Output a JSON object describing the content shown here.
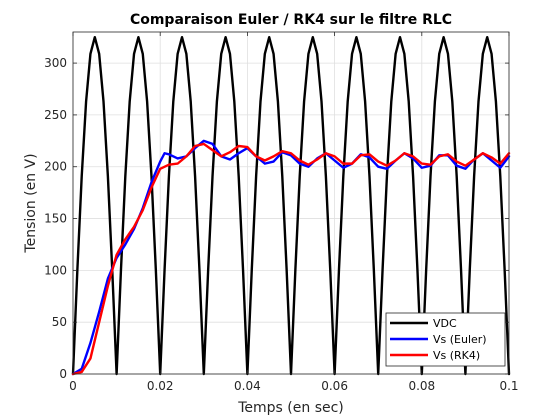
{
  "chart_data": {
    "type": "line",
    "title": "Comparaison Euler / RK4 sur le filtre RLC",
    "xlabel": "Temps (en sec)",
    "ylabel": "Tension (en V)",
    "xlim": [
      0,
      0.1
    ],
    "ylim": [
      0,
      330
    ],
    "x_ticks": [
      0,
      0.02,
      0.04,
      0.06,
      0.08,
      0.1
    ],
    "x_tick_labels": [
      "0",
      "0.02",
      "0.04",
      "0.06",
      "0.08",
      "0.1"
    ],
    "y_ticks": [
      0,
      50,
      100,
      150,
      200,
      250,
      300
    ],
    "y_tick_labels": [
      "0",
      "50",
      "100",
      "150",
      "200",
      "250",
      "300"
    ],
    "grid": true,
    "legend_position": "bottom-right",
    "series": [
      {
        "name": "VDC",
        "color": "#000000",
        "x": [
          0,
          0.001,
          0.002,
          0.003,
          0.004,
          0.005,
          0.006,
          0.007,
          0.008,
          0.009,
          0.01,
          0.011,
          0.012,
          0.013,
          0.014,
          0.015,
          0.016,
          0.017,
          0.018,
          0.019,
          0.02,
          0.021,
          0.022,
          0.023,
          0.024,
          0.025,
          0.026,
          0.027,
          0.028,
          0.029,
          0.03,
          0.031,
          0.032,
          0.033,
          0.034,
          0.035,
          0.036,
          0.037,
          0.038,
          0.039,
          0.04,
          0.041,
          0.042,
          0.043,
          0.044,
          0.045,
          0.046,
          0.047,
          0.048,
          0.049,
          0.05,
          0.051,
          0.052,
          0.053,
          0.054,
          0.055,
          0.056,
          0.057,
          0.058,
          0.059,
          0.06,
          0.061,
          0.062,
          0.063,
          0.064,
          0.065,
          0.066,
          0.067,
          0.068,
          0.069,
          0.07,
          0.071,
          0.072,
          0.073,
          0.074,
          0.075,
          0.076,
          0.077,
          0.078,
          0.079,
          0.08,
          0.081,
          0.082,
          0.083,
          0.084,
          0.085,
          0.086,
          0.087,
          0.088,
          0.089,
          0.09,
          0.091,
          0.092,
          0.093,
          0.094,
          0.095,
          0.096,
          0.097,
          0.098,
          0.099,
          0.1
        ],
        "y": [
          0,
          100.4,
          190.9,
          262.8,
          309.0,
          325.0,
          309.0,
          262.8,
          190.9,
          100.4,
          0,
          100.4,
          190.9,
          262.8,
          309.0,
          325.0,
          309.0,
          262.8,
          190.9,
          100.4,
          0,
          100.4,
          190.9,
          262.8,
          309.0,
          325.0,
          309.0,
          262.8,
          190.9,
          100.4,
          0,
          100.4,
          190.9,
          262.8,
          309.0,
          325.0,
          309.0,
          262.8,
          190.9,
          100.4,
          0,
          100.4,
          190.9,
          262.8,
          309.0,
          325.0,
          309.0,
          262.8,
          190.9,
          100.4,
          0,
          100.4,
          190.9,
          262.8,
          309.0,
          325.0,
          309.0,
          262.8,
          190.9,
          100.4,
          0,
          100.4,
          190.9,
          262.8,
          309.0,
          325.0,
          309.0,
          262.8,
          190.9,
          100.4,
          0,
          100.4,
          190.9,
          262.8,
          309.0,
          325.0,
          309.0,
          262.8,
          190.9,
          100.4,
          0,
          100.4,
          190.9,
          262.8,
          309.0,
          325.0,
          309.0,
          262.8,
          190.9,
          100.4,
          0,
          100.4,
          190.9,
          262.8,
          309.0,
          325.0,
          309.0,
          262.8,
          190.9,
          100.4,
          0
        ]
      },
      {
        "name": "Vs (Euler)",
        "color": "#0000ff",
        "x": [
          0,
          0.002,
          0.004,
          0.006,
          0.008,
          0.01,
          0.012,
          0.014,
          0.016,
          0.018,
          0.02,
          0.021,
          0.022,
          0.024,
          0.026,
          0.028,
          0.03,
          0.032,
          0.034,
          0.036,
          0.038,
          0.04,
          0.042,
          0.044,
          0.046,
          0.048,
          0.05,
          0.052,
          0.054,
          0.056,
          0.058,
          0.06,
          0.062,
          0.064,
          0.066,
          0.068,
          0.07,
          0.072,
          0.074,
          0.076,
          0.078,
          0.08,
          0.082,
          0.084,
          0.086,
          0.088,
          0.09,
          0.092,
          0.094,
          0.096,
          0.098,
          0.1
        ],
        "y": [
          0,
          5,
          30,
          60,
          92,
          112,
          125,
          140,
          160,
          185,
          205,
          213,
          212,
          208,
          210,
          218,
          225,
          222,
          210,
          207,
          213,
          218,
          210,
          203,
          205,
          214,
          211,
          203,
          200,
          208,
          213,
          206,
          199,
          203,
          212,
          209,
          200,
          198,
          206,
          213,
          208,
          199,
          201,
          211,
          211,
          201,
          198,
          207,
          213,
          206,
          199,
          210
        ]
      },
      {
        "name": "Vs (RK4)",
        "color": "#ff0000",
        "x": [
          0,
          0.002,
          0.004,
          0.006,
          0.008,
          0.01,
          0.012,
          0.014,
          0.016,
          0.018,
          0.02,
          0.022,
          0.024,
          0.026,
          0.028,
          0.03,
          0.032,
          0.034,
          0.036,
          0.038,
          0.04,
          0.042,
          0.044,
          0.046,
          0.048,
          0.05,
          0.052,
          0.054,
          0.056,
          0.058,
          0.06,
          0.062,
          0.064,
          0.066,
          0.068,
          0.07,
          0.072,
          0.074,
          0.076,
          0.078,
          0.08,
          0.082,
          0.084,
          0.086,
          0.088,
          0.09,
          0.092,
          0.094,
          0.096,
          0.098,
          0.1
        ],
        "y": [
          0,
          2,
          15,
          50,
          85,
          115,
          130,
          142,
          158,
          180,
          198,
          202,
          203,
          210,
          220,
          222,
          216,
          210,
          214,
          220,
          219,
          210,
          206,
          210,
          215,
          213,
          206,
          202,
          207,
          213,
          210,
          203,
          203,
          211,
          212,
          205,
          201,
          206,
          213,
          210,
          203,
          202,
          210,
          212,
          205,
          201,
          207,
          213,
          209,
          203,
          213
        ]
      }
    ]
  }
}
